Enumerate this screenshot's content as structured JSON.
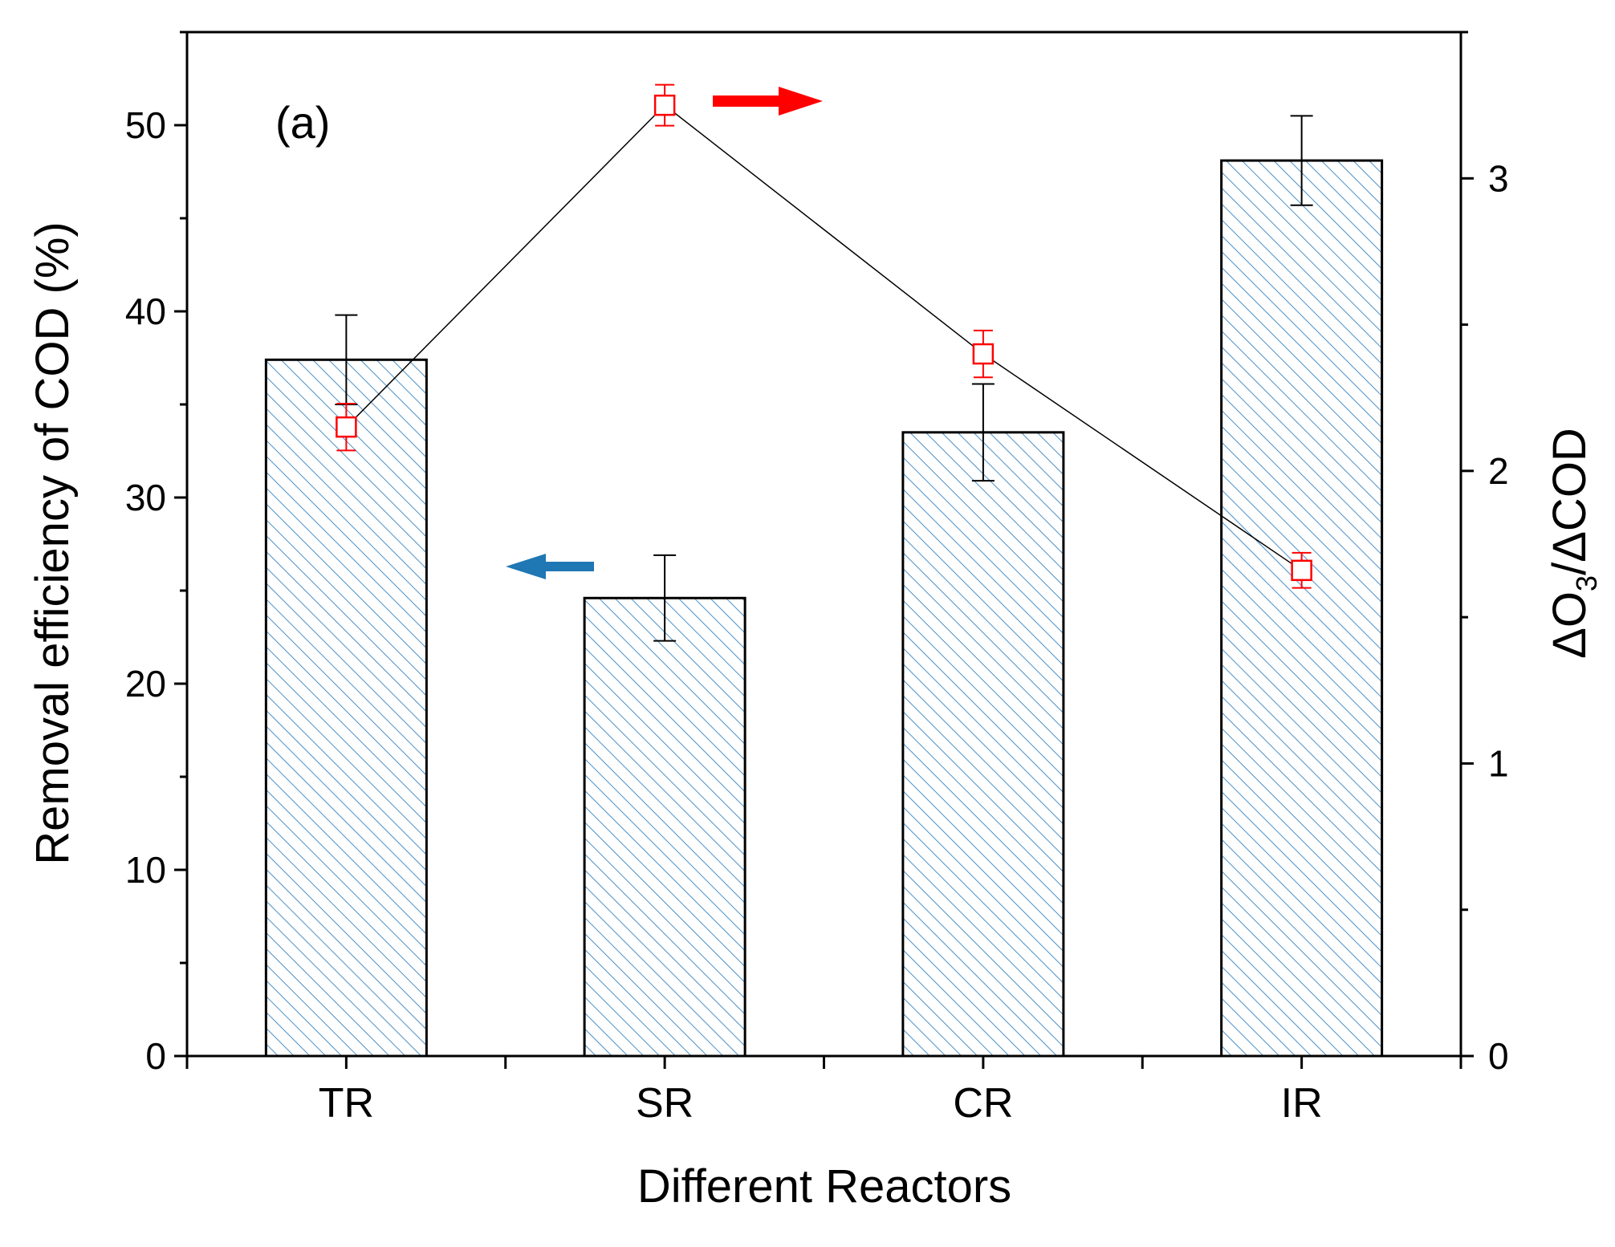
{
  "chart_data": {
    "type": "bar",
    "panel_label": "(a)",
    "title": "",
    "xlabel": "Different Reactors",
    "ylabel_left": "Removal efficiency of COD (%)",
    "ylabel_right": {
      "delta1": "Δ",
      "o": "O",
      "sub": "3",
      "rest": "/ΔCOD"
    },
    "categories": [
      "TR",
      "SR",
      "CR",
      "IR"
    ],
    "series": [
      {
        "name": "Removal efficiency of COD (%)",
        "kind": "bar",
        "axis": "left",
        "values": [
          37.4,
          24.6,
          33.5,
          48.1
        ],
        "errors": [
          2.4,
          2.3,
          2.6,
          2.4
        ],
        "fill_color": "#4a90c8"
      },
      {
        "name": "ΔO3/ΔCOD",
        "kind": "line-marker",
        "axis": "right",
        "values": [
          2.15,
          3.25,
          2.4,
          1.66
        ],
        "errors": [
          0.08,
          0.07,
          0.08,
          0.06
        ],
        "marker_color": "#ff0000",
        "line_color": "#000000"
      }
    ],
    "ylim_left": [
      0,
      55
    ],
    "yticks_left": [
      0,
      10,
      20,
      30,
      40,
      50
    ],
    "ylim_right": [
      0,
      3.5
    ],
    "yticks_right": [
      0,
      1,
      2,
      3
    ],
    "grid": false,
    "annotations": [
      {
        "kind": "arrow",
        "direction": "right",
        "color": "#ff0000",
        "meaning": "points to right axis"
      },
      {
        "kind": "arrow",
        "direction": "left",
        "color": "#1f77b4",
        "meaning": "points to left axis"
      }
    ]
  }
}
